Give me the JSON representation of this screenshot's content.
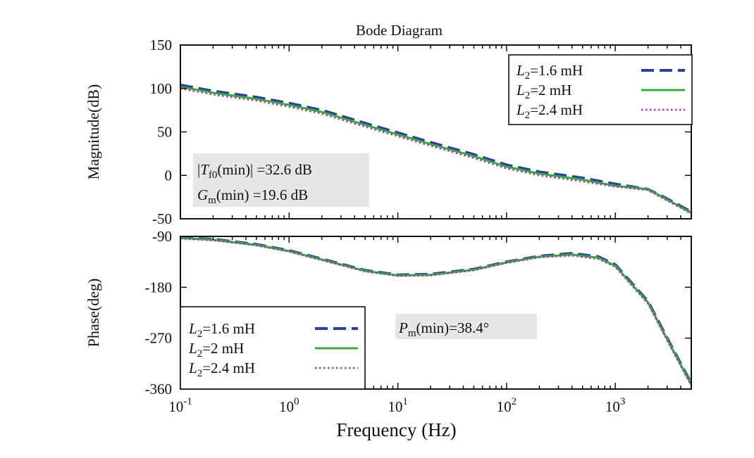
{
  "chart_data": [
    {
      "panel": "magnitude",
      "type": "line",
      "title": "Bode Diagram",
      "xlabel": "",
      "ylabel": "Magnitude(dB)",
      "xscale": "log",
      "xlim": [
        0.1,
        5000
      ],
      "ylim": [
        -50,
        150
      ],
      "yticks": [
        -50,
        0,
        50,
        100,
        150
      ],
      "x": [
        0.1,
        0.2,
        0.5,
        1,
        2,
        5,
        10,
        20,
        50,
        100,
        200,
        500,
        1000,
        2000,
        3000,
        5000
      ],
      "series": [
        {
          "name": "L2=1.6 mH",
          "color": "#2a3f9e",
          "style": "dashed",
          "values": [
            104,
            97,
            90,
            83,
            75,
            60,
            49,
            38,
            24,
            12,
            4,
            -3,
            -10,
            -16,
            -27,
            -42
          ]
        },
        {
          "name": "L2=2 mH",
          "color": "#39a83f",
          "style": "solid",
          "values": [
            102,
            95,
            88,
            81,
            73,
            58,
            47,
            36,
            22,
            10,
            2,
            -5,
            -12,
            -16,
            -28,
            -43
          ]
        },
        {
          "name": "L2=2.4 mH",
          "color": "#9b3fa8",
          "style": "dotted",
          "values": [
            100,
            93,
            86,
            79,
            71,
            56,
            45,
            34,
            20,
            8,
            0,
            -7,
            -13,
            -17,
            -29,
            -44
          ]
        }
      ],
      "legend_position": "top-right",
      "legend_entries": [
        {
          "var": "L",
          "sub": "2",
          "rest": "=1.6 mH"
        },
        {
          "var": "L",
          "sub": "2",
          "rest": "=2 mH"
        },
        {
          "var": "L",
          "sub": "2",
          "rest": "=2.4 mH"
        }
      ],
      "annotation": {
        "line1": {
          "prefix": "|",
          "var": "T",
          "sub": "f0",
          "rest": "(min)| =32.6 dB"
        },
        "line2": {
          "var": "G",
          "sub": "m",
          "rest": "(min) =19.6 dB"
        }
      },
      "grid": false
    },
    {
      "panel": "phase",
      "type": "line",
      "xlabel": "Frequency (Hz)",
      "ylabel": "Phase(deg)",
      "xscale": "log",
      "xlim": [
        0.1,
        5000
      ],
      "ylim": [
        -360,
        -90
      ],
      "yticks": [
        -360,
        -270,
        -180,
        -90
      ],
      "xticks": [
        {
          "value": 0.1,
          "base": "10",
          "exp": "-1"
        },
        {
          "value": 1,
          "base": "10",
          "exp": "0"
        },
        {
          "value": 10,
          "base": "10",
          "exp": "1"
        },
        {
          "value": 100,
          "base": "10",
          "exp": "2"
        },
        {
          "value": 1000,
          "base": "10",
          "exp": "3"
        }
      ],
      "x": [
        0.1,
        0.2,
        0.5,
        1,
        2,
        5,
        10,
        20,
        50,
        100,
        200,
        400,
        700,
        1000,
        2000,
        3000,
        5000
      ],
      "series": [
        {
          "name": "L2=1.6 mH",
          "color": "#2a3f9e",
          "style": "dashed",
          "values": [
            -92,
            -95,
            -104,
            -115,
            -130,
            -150,
            -158,
            -157,
            -148,
            -135,
            -125,
            -120,
            -126,
            -140,
            -205,
            -270,
            -350
          ]
        },
        {
          "name": "L2=2 mH",
          "color": "#39a83f",
          "style": "solid",
          "values": [
            -93,
            -96,
            -105,
            -116,
            -131,
            -151,
            -159,
            -158,
            -149,
            -136,
            -126,
            -122,
            -128,
            -142,
            -207,
            -272,
            -352
          ]
        },
        {
          "name": "L2=2.4 mH",
          "color": "#9b3fa8",
          "style": "dotted",
          "values": [
            -94,
            -97,
            -106,
            -117,
            -132,
            -152,
            -160,
            -159,
            -150,
            -137,
            -127,
            -124,
            -130,
            -144,
            -209,
            -274,
            -354
          ]
        }
      ],
      "legend_position": "bottom-left",
      "legend_entries": [
        {
          "var": "L",
          "sub": "2",
          "rest": "=1.6 mH"
        },
        {
          "var": "L",
          "sub": "2",
          "rest": "=2 mH"
        },
        {
          "var": "L",
          "sub": "2",
          "rest": "=2.4 mH"
        }
      ],
      "annotation": {
        "line1": {
          "var": "P",
          "sub": "m",
          "rest": "(min)=38.4°"
        }
      },
      "grid": false
    }
  ]
}
